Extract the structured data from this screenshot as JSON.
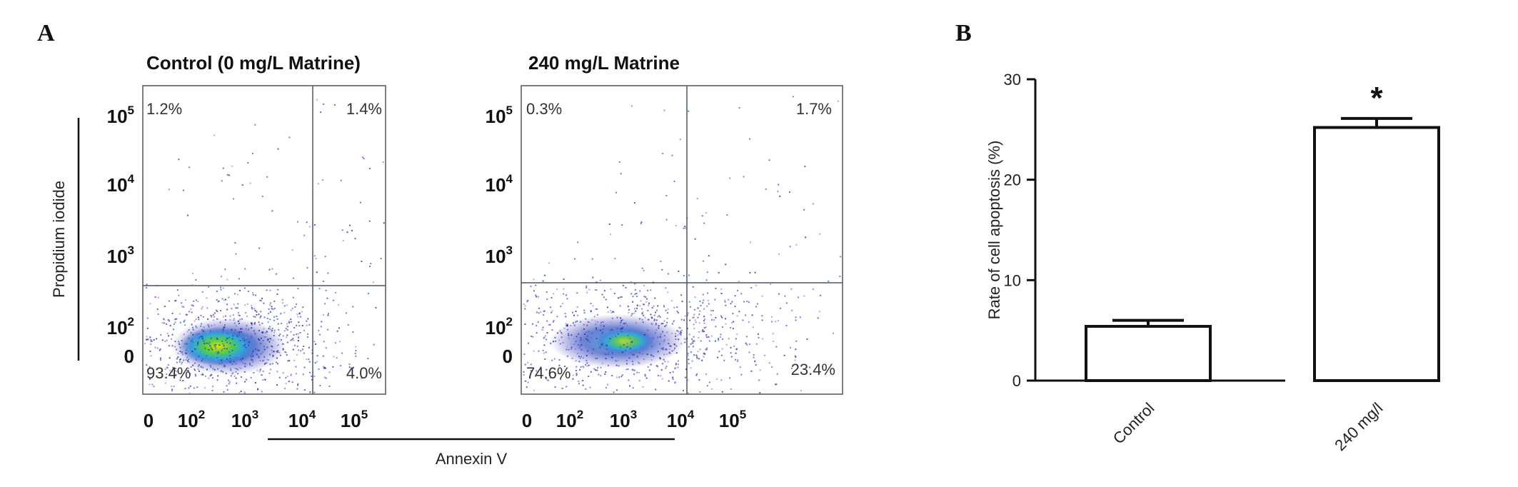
{
  "panel_a": {
    "label": "A",
    "y_axis_label": "Propidium iodide",
    "x_axis_label": "Annexin V",
    "plots": [
      {
        "title": "Control (0 mg/L Matrine)",
        "quadrants": {
          "upper_left": "1.2%",
          "upper_right": "1.4%",
          "lower_left": "93.4%",
          "lower_right": "4.0%"
        }
      },
      {
        "title": "240 mg/L Matrine",
        "quadrants": {
          "upper_left": "0.3%",
          "upper_right": "1.7%",
          "lower_left": "74.6%",
          "lower_right": "23.4%"
        }
      }
    ],
    "y_ticks": [
      {
        "base": "10",
        "exp": "5"
      },
      {
        "base": "10",
        "exp": "4"
      },
      {
        "base": "10",
        "exp": "3"
      },
      {
        "base": "10",
        "exp": "2"
      },
      {
        "base": "0",
        "exp": ""
      }
    ],
    "x_ticks": [
      {
        "base": "0",
        "exp": ""
      },
      {
        "base": "10",
        "exp": "2"
      },
      {
        "base": "10",
        "exp": "3"
      },
      {
        "base": "10",
        "exp": "4"
      },
      {
        "base": "10",
        "exp": "5"
      }
    ]
  },
  "panel_b": {
    "label": "B",
    "significance": "*"
  },
  "chart_data": {
    "type": "bar",
    "categories": [
      "Control",
      "240 mg/l"
    ],
    "values": [
      5.4,
      25.2
    ],
    "errors": [
      0.6,
      0.9
    ],
    "ylabel": "Rate of cell apoptosis (%)",
    "xlabel": "",
    "ylim": [
      0,
      30
    ],
    "yticks": [
      0,
      10,
      20,
      30
    ]
  }
}
